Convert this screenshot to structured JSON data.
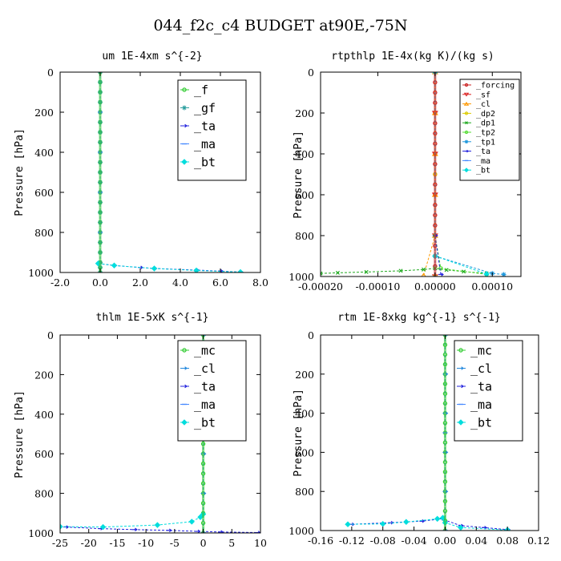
{
  "figure_title": "044_f2c_c4  BUDGET at90E,-75N",
  "chart_data": [
    {
      "type": "line",
      "title": "um  1E-4xm s^{-2}",
      "ylabel": "Pressure [hPa]",
      "xlabel": "",
      "xlim": [
        -2.0,
        8.0
      ],
      "ylim": [
        0,
        1000
      ],
      "y_inverted": true,
      "xticks": [
        "-2.0",
        "0.0",
        "2.0",
        "4.0",
        "6.0",
        "8.0"
      ],
      "yticks": [
        "0",
        "200",
        "400",
        "600",
        "800",
        "1000"
      ],
      "legend_position": "top-right",
      "series": [
        {
          "name": "_f",
          "color": "#33cc33",
          "marker": "circle",
          "x": [
            0,
            0,
            0,
            0,
            0,
            0,
            0,
            0,
            0,
            0,
            0,
            0,
            0,
            0,
            0,
            0,
            0,
            0,
            0,
            0,
            0,
            0
          ],
          "y": [
            0,
            50,
            100,
            150,
            200,
            250,
            300,
            350,
            400,
            450,
            500,
            550,
            600,
            650,
            700,
            750,
            800,
            850,
            900,
            950,
            975,
            1000
          ]
        },
        {
          "name": "_gf",
          "color": "#2fa0a0",
          "marker": "star",
          "x": [
            0,
            0,
            0,
            0,
            0,
            0,
            0,
            0,
            0,
            0,
            0,
            0,
            0,
            0,
            0,
            0,
            0,
            0,
            0,
            0,
            0,
            0
          ],
          "y": [
            0,
            50,
            100,
            150,
            200,
            250,
            300,
            350,
            400,
            450,
            500,
            550,
            600,
            650,
            700,
            750,
            800,
            850,
            900,
            950,
            975,
            1000
          ]
        },
        {
          "name": "_ta",
          "color": "#2222dd",
          "marker": "arrow",
          "x": [
            -0.1,
            0.7,
            2.0,
            2.7,
            4.8,
            6.0,
            7.0
          ],
          "y": [
            955,
            965,
            975,
            980,
            988,
            993,
            998
          ]
        },
        {
          "name": "_ma",
          "color": "#4488ff",
          "marker": "dash",
          "x": [
            0,
            0,
            0,
            0,
            0,
            0
          ],
          "y": [
            0,
            200,
            400,
            600,
            800,
            1000
          ]
        },
        {
          "name": "_bt",
          "color": "#00dddd",
          "marker": "diamond",
          "x": [
            -0.1,
            0.7,
            2.7,
            4.8,
            7.0
          ],
          "y": [
            955,
            965,
            980,
            990,
            998
          ]
        }
      ]
    },
    {
      "type": "line",
      "title": "rtpthlp  1E-4x(kg K)/(kg s)",
      "ylabel": "Pressure [hPa]",
      "xlabel": "",
      "xlim": [
        -0.0002,
        0.00015
      ],
      "ylim": [
        0,
        1000
      ],
      "y_inverted": true,
      "xticks": [
        "-0.00020",
        "-0.00010",
        "0.00000",
        "0.00010"
      ],
      "yticks": [
        "0",
        "200",
        "400",
        "600",
        "800",
        "1000"
      ],
      "legend_position": "top-right",
      "series": [
        {
          "name": "_forcing",
          "color": "#cc2222",
          "marker": "circle",
          "x": [
            0,
            0,
            0,
            0,
            0,
            0,
            0,
            0,
            0,
            0,
            0,
            0,
            0,
            0,
            0,
            0,
            0,
            0,
            0,
            0,
            0
          ],
          "y": [
            0,
            50,
            100,
            150,
            200,
            250,
            300,
            350,
            400,
            450,
            500,
            550,
            600,
            650,
            700,
            750,
            800,
            850,
            900,
            950,
            1000
          ]
        },
        {
          "name": "_sf",
          "color": "#dd2222",
          "marker": "triangle-down",
          "x": [
            0,
            0,
            0,
            0,
            0,
            0
          ],
          "y": [
            0,
            200,
            400,
            600,
            800,
            1000
          ]
        },
        {
          "name": "_cl",
          "color": "#ff9900",
          "marker": "triangle-up",
          "x": [
            -2e-05,
            0,
            0,
            0,
            0,
            0
          ],
          "y": [
            995,
            800,
            600,
            400,
            200,
            0
          ]
        },
        {
          "name": "_dp2",
          "color": "#ddcc00",
          "marker": "circle",
          "x": [
            0,
            0,
            0
          ],
          "y": [
            0,
            500,
            1000
          ]
        },
        {
          "name": "_dp1",
          "color": "#22aa22",
          "marker": "cross",
          "x": [
            -0.0002,
            -0.00017,
            -0.00012,
            -6e-05,
            -2e-05,
            0.0,
            2e-05,
            5e-05,
            9e-05
          ],
          "y": [
            985,
            982,
            978,
            972,
            966,
            960,
            968,
            976,
            985
          ]
        },
        {
          "name": "_tp2",
          "color": "#55dd33",
          "marker": "circle",
          "x": [
            0,
            0,
            1e-05,
            9e-05
          ],
          "y": [
            0,
            800,
            960,
            990
          ]
        },
        {
          "name": "_tp1",
          "color": "#2299dd",
          "marker": "star",
          "x": [
            0,
            0,
            0.0001,
            0.00012
          ],
          "y": [
            0,
            900,
            985,
            990
          ]
        },
        {
          "name": "_ta",
          "color": "#2222dd",
          "marker": "arrow",
          "x": [
            0,
            0,
            1e-05
          ],
          "y": [
            0,
            800,
            990
          ]
        },
        {
          "name": "_ma",
          "color": "#4488ff",
          "marker": "dash",
          "x": [
            0,
            0
          ],
          "y": [
            0,
            1000
          ]
        },
        {
          "name": "_bt",
          "color": "#00dddd",
          "marker": "diamond",
          "x": [
            0,
            0,
            9e-05
          ],
          "y": [
            0,
            900,
            988
          ]
        }
      ]
    },
    {
      "type": "line",
      "title": "thlm  1E-5xK s^{-1}",
      "ylabel": "Pressure [hPa]",
      "xlabel": "",
      "xlim": [
        -25,
        10
      ],
      "ylim": [
        0,
        1000
      ],
      "y_inverted": true,
      "xticks": [
        "-25",
        "-20",
        "-15",
        "-10",
        "-5",
        "0",
        "5",
        "10"
      ],
      "yticks": [
        "0",
        "200",
        "400",
        "600",
        "800",
        "1000"
      ],
      "legend_position": "top-right",
      "series": [
        {
          "name": "_mc",
          "color": "#33cc33",
          "marker": "circle",
          "x": [
            0,
            0,
            0,
            0,
            0,
            0,
            0,
            0,
            0,
            0,
            0,
            0,
            0,
            0,
            0,
            0,
            0,
            0,
            0,
            0,
            0
          ],
          "y": [
            0,
            50,
            100,
            150,
            200,
            250,
            300,
            350,
            400,
            450,
            500,
            550,
            600,
            650,
            700,
            750,
            800,
            850,
            900,
            950,
            1000
          ]
        },
        {
          "name": "_cl",
          "color": "#2288dd",
          "marker": "arrow",
          "x": [
            0,
            0,
            0,
            0,
            0,
            0
          ],
          "y": [
            0,
            200,
            400,
            600,
            800,
            1000
          ]
        },
        {
          "name": "_ta",
          "color": "#2222dd",
          "marker": "arrow",
          "x": [
            -24,
            -18,
            -12,
            -6,
            -1,
            3,
            9.5
          ],
          "y": [
            970,
            978,
            983,
            987,
            992,
            995,
            998
          ]
        },
        {
          "name": "_ma",
          "color": "#4488ff",
          "marker": "dash",
          "x": [
            0,
            0,
            0
          ],
          "y": [
            0,
            500,
            1000
          ]
        },
        {
          "name": "_bt",
          "color": "#00dddd",
          "marker": "diamond",
          "x": [
            -25,
            -17.5,
            -8,
            -2,
            -0.5,
            0
          ],
          "y": [
            968,
            970,
            960,
            943,
            920,
            905
          ]
        }
      ]
    },
    {
      "type": "line",
      "title": "rtm  1E-8xkg kg^{-1} s^{-1}",
      "ylabel": "Pressure [hPa]",
      "xlabel": "",
      "xlim": [
        -0.16,
        0.12
      ],
      "ylim": [
        0,
        1000
      ],
      "y_inverted": true,
      "xticks": [
        "-0.16",
        "-0.12",
        "-0.08",
        "-0.04",
        "0.00",
        "0.04",
        "0.08",
        "0.12"
      ],
      "yticks": [
        "0",
        "200",
        "400",
        "600",
        "800",
        "1000"
      ],
      "legend_position": "top-right",
      "series": [
        {
          "name": "_mc",
          "color": "#33cc33",
          "marker": "circle",
          "x": [
            0,
            0,
            0,
            0,
            0,
            0,
            0,
            0,
            0,
            0,
            0,
            0,
            0,
            0,
            0,
            0,
            0,
            0,
            0,
            0,
            0
          ],
          "y": [
            0,
            50,
            100,
            150,
            200,
            250,
            300,
            350,
            400,
            450,
            500,
            550,
            600,
            650,
            700,
            750,
            800,
            850,
            900,
            950,
            1000
          ]
        },
        {
          "name": "_cl",
          "color": "#2288dd",
          "marker": "arrow",
          "x": [
            0,
            0,
            0,
            0,
            0,
            0
          ],
          "y": [
            0,
            200,
            400,
            600,
            800,
            1000
          ]
        },
        {
          "name": "_ta",
          "color": "#2222dd",
          "marker": "arrow",
          "x": [
            -0.12,
            -0.07,
            -0.03,
            -0.005,
            0.02,
            0.05,
            0.08
          ],
          "y": [
            968,
            960,
            952,
            940,
            975,
            985,
            995
          ]
        },
        {
          "name": "_ma",
          "color": "#4488ff",
          "marker": "dash",
          "x": [
            0,
            0,
            0
          ],
          "y": [
            0,
            500,
            1000
          ]
        },
        {
          "name": "_bt",
          "color": "#00dddd",
          "marker": "diamond",
          "x": [
            -0.125,
            -0.08,
            -0.05,
            -0.01,
            -0.003,
            0.0,
            0.02,
            0.08
          ],
          "y": [
            968,
            966,
            956,
            940,
            935,
            960,
            985,
            997
          ]
        }
      ]
    }
  ]
}
